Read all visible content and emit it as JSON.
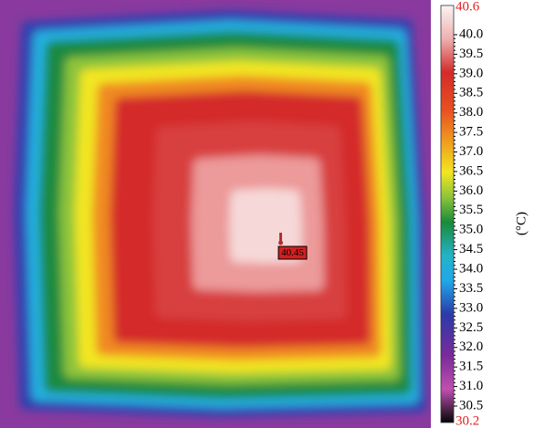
{
  "colorbar": {
    "max_label": "40.6",
    "min_label": "30.2",
    "ticks": [
      "40.0",
      "39.5",
      "39.0",
      "38.5",
      "38.0",
      "37.5",
      "37.0",
      "36.5",
      "36.0",
      "35.5",
      "35.0",
      "34.5",
      "34.0",
      "33.5",
      "33.0",
      "32.5",
      "32.0",
      "31.5",
      "31.0",
      "30.5"
    ],
    "unit": "(°C)"
  },
  "spot": {
    "reading": "40.45"
  }
}
